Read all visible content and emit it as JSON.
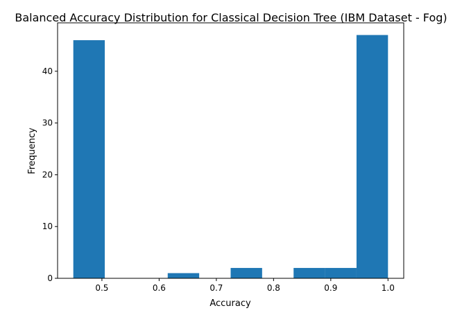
{
  "chart_data": {
    "type": "bar",
    "title": "Balanced Accuracy Distribution for Classical Decision Tree (IBM Dataset - Fog)",
    "xlabel": "Accuracy",
    "ylabel": "Frequency",
    "bar_color": "#1f77b4",
    "xlim": [
      0.4225,
      1.0275
    ],
    "ylim": [
      0,
      49.35
    ],
    "xticks": [
      0.5,
      0.6,
      0.7,
      0.8,
      0.9,
      1.0
    ],
    "xtick_labels": [
      "0.5",
      "0.6",
      "0.7",
      "0.8",
      "0.9",
      "1.0"
    ],
    "yticks": [
      0,
      10,
      20,
      30,
      40
    ],
    "ytick_labels": [
      "0",
      "10",
      "20",
      "30",
      "40"
    ],
    "bins": [
      {
        "x0": 0.45,
        "x1": 0.505,
        "value": 46
      },
      {
        "x0": 0.505,
        "x1": 0.56,
        "value": 0
      },
      {
        "x0": 0.56,
        "x1": 0.615,
        "value": 0
      },
      {
        "x0": 0.615,
        "x1": 0.67,
        "value": 1
      },
      {
        "x0": 0.67,
        "x1": 0.725,
        "value": 0
      },
      {
        "x0": 0.725,
        "x1": 0.78,
        "value": 2
      },
      {
        "x0": 0.78,
        "x1": 0.835,
        "value": 0
      },
      {
        "x0": 0.835,
        "x1": 0.89,
        "value": 2
      },
      {
        "x0": 0.89,
        "x1": 0.945,
        "value": 2
      },
      {
        "x0": 0.945,
        "x1": 1.0,
        "value": 47
      }
    ]
  }
}
